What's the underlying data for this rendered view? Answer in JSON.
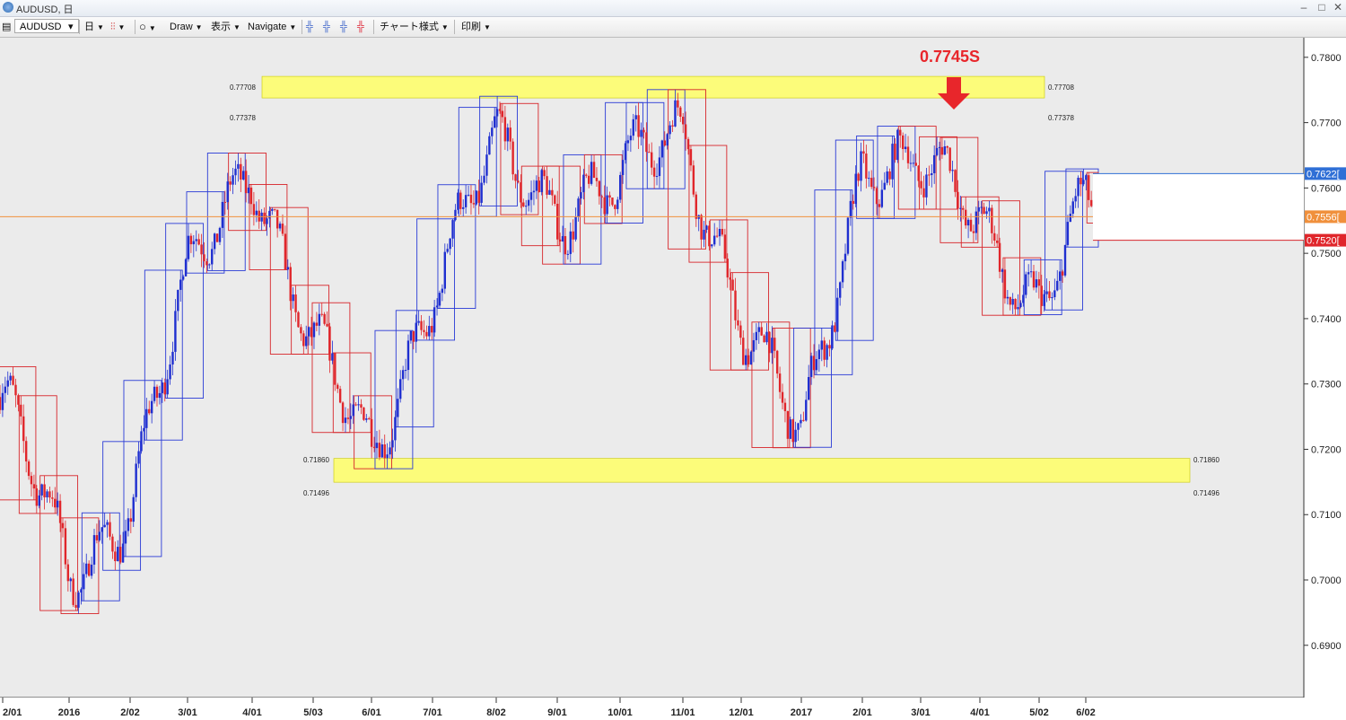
{
  "window": {
    "title": "AUDUSD, 日"
  },
  "toolbar": {
    "symbol": "AUDUSD",
    "timeframe": "日",
    "draw_label": "Draw",
    "display_label": "表示",
    "navigate_label": "Navigate",
    "chart_style_label": "チャート様式",
    "print_label": "印刷",
    "icons": [
      "chart-window-icon",
      "candle-icon",
      "circle-icon",
      "crosshair-icon"
    ]
  },
  "annotation": {
    "text": "0.7745S",
    "color": "#e8262b"
  },
  "highlights": [
    {
      "upper": "0.77708",
      "lower": "0.77378",
      "upper_value": 0.77708,
      "lower_value": 0.77378
    },
    {
      "upper": "0.71860",
      "lower": "0.71496",
      "upper_value": 0.7186,
      "lower_value": 0.71496
    }
  ],
  "price_axis": {
    "ticks": [
      "0.7800",
      "0.7700",
      "0.7600",
      "0.7500",
      "0.7400",
      "0.7300",
      "0.7200",
      "0.7100",
      "0.7000",
      "0.6900"
    ],
    "ylim": [
      0.682,
      0.783
    ]
  },
  "price_tags": [
    {
      "label": "0.7622[",
      "value": 0.7622,
      "color": "#2f6fd6"
    },
    {
      "label": "0.7556[",
      "value": 0.7556,
      "color": "#f0903c"
    },
    {
      "label": "0.7520[",
      "value": 0.752,
      "color": "#e0262b"
    }
  ],
  "date_axis": {
    "labels": [
      "2/01",
      "2016",
      "2/02",
      "3/01",
      "4/01",
      "5/03",
      "6/01",
      "7/01",
      "8/02",
      "9/01",
      "10/01",
      "11/01",
      "12/01",
      "2017",
      "2/01",
      "3/01",
      "4/01",
      "5/02",
      "6/02"
    ]
  },
  "chart_data": {
    "type": "candlestick",
    "symbol": "AUDUSD",
    "timeframe": "日",
    "ylim": [
      0.682,
      0.783
    ],
    "horizontal_line": 0.7556,
    "reference_levels": [
      0.77708,
      0.77378,
      0.7186,
      0.71496
    ],
    "monthly_close": [
      {
        "date": "2/01",
        "close": 0.728
      },
      {
        "date": "2016",
        "close": 0.7
      },
      {
        "date": "2/02",
        "close": 0.713
      },
      {
        "date": "3/01",
        "close": 0.745
      },
      {
        "date": "4/01",
        "close": 0.765
      },
      {
        "date": "5/03",
        "close": 0.735
      },
      {
        "date": "6/01",
        "close": 0.719
      },
      {
        "date": "7/01",
        "close": 0.745
      },
      {
        "date": "8/02",
        "close": 0.765
      },
      {
        "date": "9/01",
        "close": 0.758
      },
      {
        "date": "10/01",
        "close": 0.76
      },
      {
        "date": "11/01",
        "close": 0.77
      },
      {
        "date": "12/01",
        "close": 0.74
      },
      {
        "date": "2017",
        "close": 0.72
      },
      {
        "date": "2/01",
        "close": 0.765
      },
      {
        "date": "3/01",
        "close": 0.762
      },
      {
        "date": "4/01",
        "close": 0.756
      },
      {
        "date": "5/02",
        "close": 0.742
      },
      {
        "date": "6/02",
        "close": 0.7556
      }
    ],
    "colors": {
      "up": "#1f2fd0",
      "down": "#e0262b",
      "highlight": "#ffff66"
    }
  }
}
